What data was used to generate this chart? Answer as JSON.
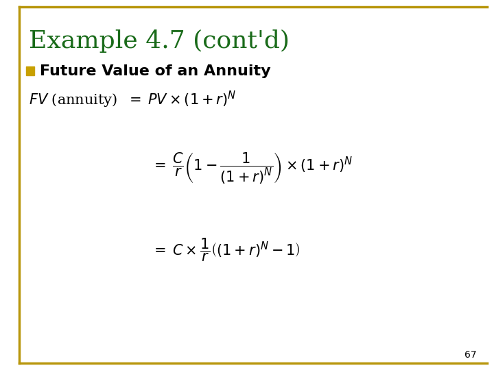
{
  "title": "Example 4.7 (cont'd)",
  "title_color": "#1a6b1a",
  "title_fontsize": 26,
  "background_color": "#ffffff",
  "border_color": "#b8960c",
  "bullet_color": "#c8a000",
  "bullet_text": "Future Value of an Annuity",
  "bullet_fontsize": 16,
  "page_number": "67",
  "eq_fontsize": 15
}
